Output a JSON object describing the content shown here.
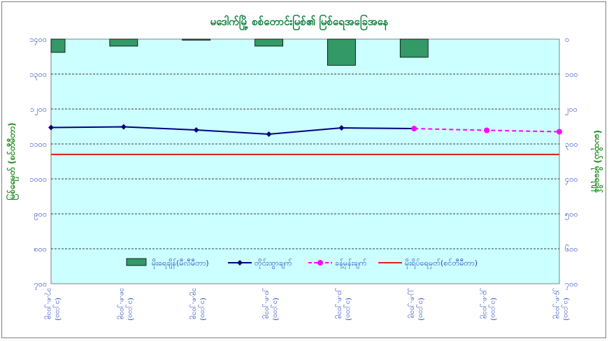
{
  "chart_data": {
    "type": "bar+line",
    "title": "မဒေါက်မြို့ စစ်တောင်းမြစ်၏ မြစ်ရေအခြေအနေ",
    "ylabel_left": "မြစ်ရေမှတ် (စင်တီမီတာ)",
    "ylabel_right": "(ပေထိုဃ်) မိုးရေချိန်",
    "categories": [
      "၁၇.၈.၂၀၁၉ (၁၂:၀၀)",
      "၁၈.၈.၂၀၁၉ (၁၂:၀၀)",
      "၁၉.၈.၂၀၁၉ (၁၂:၀၀)",
      "၂၀.၈.၂၀၁၉ (၁၂:၀၀)",
      "၂၁.၈.၂၀၁၉ (၁၂:၀၀)",
      "၂၂.၈.၂၀၁၉ (၁၂:၀၀)",
      "၂၃.၈.၂၀၁၉ (၁၂:၀၀)",
      "၂၄.၈.၂၀၁၉ (၁၂:၀၀)"
    ],
    "left_axis": {
      "min": 700,
      "max": 1400,
      "step": 100,
      "tick_labels": [
        "၇၀၀",
        "၈၀၀",
        "၉၀၀",
        "၁၀၀၀",
        "၁၁၀၀",
        "၁၂၀၀",
        "၁၃၀၀",
        "၁၄၀၀"
      ]
    },
    "right_axis": {
      "min": 0,
      "max": 700,
      "step": 100,
      "inverted": true,
      "tick_labels": [
        "၀",
        "၁၀၀",
        "၂၀၀",
        "၃၀၀",
        "၄၀၀",
        "၅၀၀",
        "၆၀၀",
        "၇၀၀"
      ]
    },
    "series": [
      {
        "name": "မိုးရေချိန်(မီလီမီတာ)",
        "kind": "bar",
        "axis": "right",
        "color": "#339966",
        "values": [
          38,
          20,
          3,
          20,
          75,
          52,
          null,
          null
        ]
      },
      {
        "name": "တိုင်းထွာချက်",
        "kind": "line",
        "axis": "left",
        "color": "#000080",
        "marker": "diamond",
        "values": [
          1147,
          1149,
          1140,
          1128,
          1146,
          1144,
          null,
          null
        ]
      },
      {
        "name": "ခန့်မှန်းချက်",
        "kind": "line-dashed",
        "axis": "left",
        "color": "#ff00ff",
        "marker": "circle",
        "values": [
          null,
          null,
          null,
          null,
          null,
          1144,
          1139,
          1135
        ]
      },
      {
        "name": "မိုးရိပ်ရေမှတ်(စင်တီမီတာ)",
        "kind": "hline",
        "axis": "left",
        "color": "#dd2222",
        "value": 1070
      }
    ],
    "grid": true,
    "legend": "bottom-center"
  }
}
